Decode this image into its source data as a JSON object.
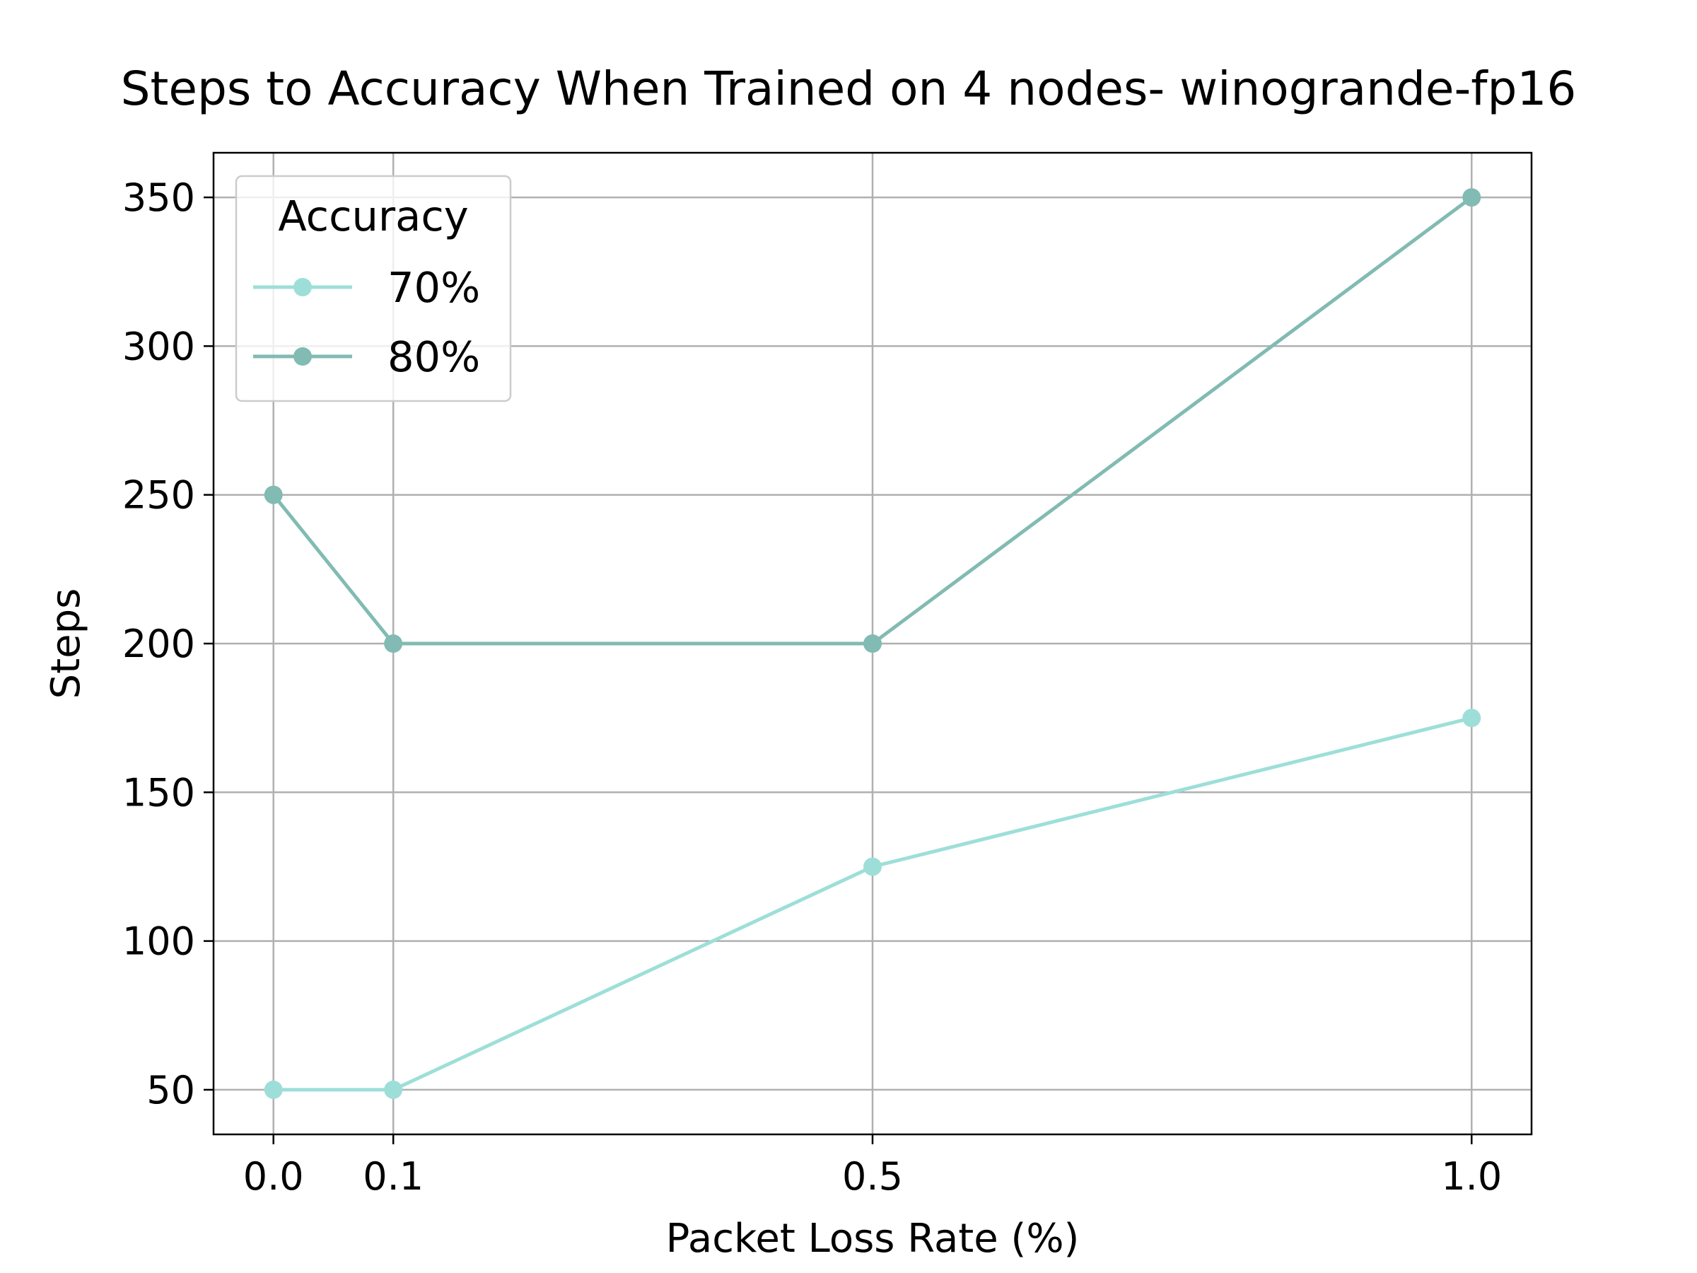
{
  "chart_data": {
    "type": "line",
    "title": "Steps to Accuracy When Trained on 4 nodes- winogrande-fp16",
    "xlabel": "Packet Loss Rate (%)",
    "ylabel": "Steps",
    "x": [
      0.0,
      0.1,
      0.5,
      1.0
    ],
    "x_tick_labels": [
      "0.0",
      "0.1",
      "0.5",
      "1.0"
    ],
    "xlim": [
      -0.05,
      1.05
    ],
    "ylim": [
      35,
      365
    ],
    "y_ticks": [
      50,
      100,
      150,
      200,
      250,
      300,
      350
    ],
    "grid": true,
    "legend": {
      "title": "Accuracy",
      "placement": "upper-left"
    },
    "series": [
      {
        "name": "70%",
        "color": "#9ddfd8",
        "values": [
          50,
          50,
          125,
          175
        ]
      },
      {
        "name": "80%",
        "color": "#81bbb3",
        "values": [
          250,
          200,
          200,
          350
        ]
      }
    ]
  }
}
